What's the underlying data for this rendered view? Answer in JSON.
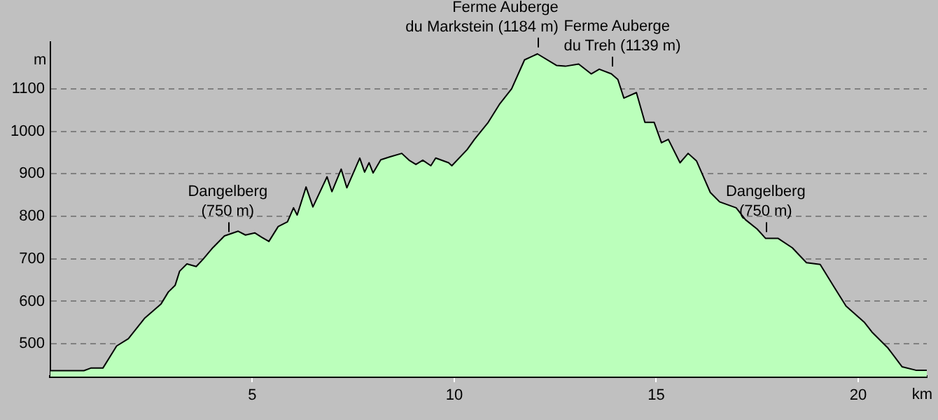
{
  "chart_data": {
    "type": "area",
    "xlabel": "km",
    "ylabel": "m",
    "series": [
      {
        "color": "#bbffbb",
        "x": [
          0,
          0.83,
          1.0,
          1.3,
          1.64,
          1.93,
          2.34,
          2.74,
          2.92,
          3.09,
          3.2,
          3.38,
          3.61,
          3.78,
          4.02,
          4.31,
          4.65,
          4.83,
          5.06,
          5.23,
          5.41,
          5.64,
          5.87,
          6.02,
          6.11,
          6.33,
          6.5,
          6.85,
          6.97,
          7.2,
          7.34,
          7.66,
          7.78,
          7.89,
          7.99,
          8.18,
          8.41,
          8.7,
          8.88,
          9.05,
          9.22,
          9.42,
          9.54,
          9.86,
          9.94,
          10.32,
          10.5,
          10.84,
          11.13,
          11.42,
          11.74,
          12.06,
          12.53,
          12.75,
          13.08,
          13.39,
          13.59,
          13.89,
          14.05,
          14.2,
          14.51,
          14.72,
          14.95,
          15.13,
          15.3,
          15.59,
          15.79,
          16.0,
          16.34,
          16.57,
          16.98,
          17.21,
          17.5,
          17.71,
          18.02,
          18.37,
          18.72,
          19.06,
          19.41,
          19.7,
          20.16,
          20.34,
          20.74,
          21.09,
          21.43,
          21.7
        ],
        "values": [
          437,
          437,
          443,
          443,
          495,
          512,
          561,
          594,
          622,
          638,
          671,
          688,
          682,
          699,
          726,
          754,
          765,
          756,
          761,
          751,
          741,
          776,
          787,
          820,
          803,
          869,
          822,
          893,
          858,
          911,
          867,
          937,
          904,
          926,
          902,
          933,
          940,
          948,
          932,
          922,
          932,
          919,
          937,
          926,
          919,
          957,
          981,
          1021,
          1065,
          1100,
          1168,
          1182,
          1155,
          1153,
          1158,
          1135,
          1146,
          1135,
          1122,
          1078,
          1091,
          1021,
          1021,
          973,
          981,
          926,
          948,
          930,
          856,
          834,
          820,
          792,
          770,
          748,
          748,
          726,
          691,
          687,
          633,
          589,
          550,
          528,
          490,
          446,
          438,
          438
        ]
      }
    ],
    "xlim": [
      0,
      21.7
    ],
    "xticks": [
      5,
      10,
      15,
      20
    ],
    "ylim": [
      423,
      1210
    ],
    "yticks": [
      500,
      600,
      700,
      800,
      900,
      1000,
      1100
    ],
    "grid": "y",
    "legend": false,
    "annotations": [
      {
        "text": "Dangelberg\n(750 m)",
        "x": 4.39,
        "y": 750
      },
      {
        "text": "Ferme Auberge\ndu Markstein (1184 m)",
        "x": 12.06,
        "y": 1184
      },
      {
        "text": "Ferme Auberge\ndu Treh (1139 m)",
        "x": 13.89,
        "y": 1139
      },
      {
        "text": "Dangelberg\n(750 m)",
        "x": 17.71,
        "y": 750
      }
    ]
  }
}
